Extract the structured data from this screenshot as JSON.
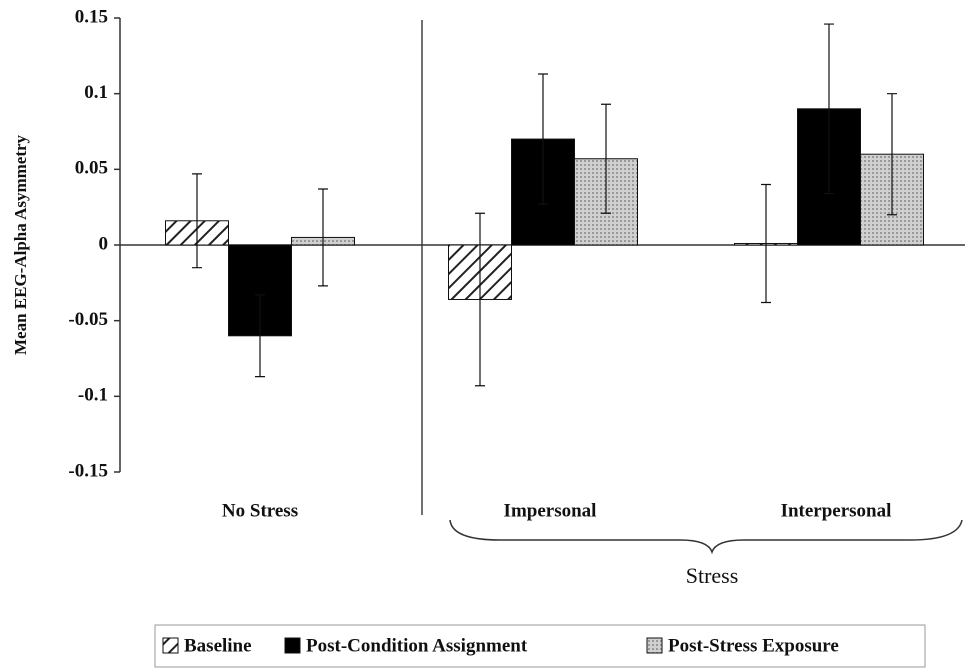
{
  "chart_data": {
    "type": "bar",
    "ylabel": "Mean EEG-Alpha Asymmetry",
    "categories": [
      "No Stress",
      "Impersonal",
      "Interpersonal"
    ],
    "annotation": "Stress",
    "series": [
      {
        "name": "Baseline",
        "color": "#222222",
        "pattern": "hatch",
        "values": [
          0.016,
          -0.036,
          0.001
        ],
        "errors": [
          0.031,
          0.057,
          0.039
        ]
      },
      {
        "name": "Post-Condition Assignment",
        "color": "#000000",
        "pattern": "solid",
        "values": [
          -0.06,
          0.07,
          0.09
        ],
        "errors": [
          0.027,
          0.043,
          0.056
        ]
      },
      {
        "name": "Post-Stress Exposure",
        "color": "#bbbbbb",
        "pattern": "dots",
        "values": [
          0.005,
          0.057,
          0.06
        ],
        "errors": [
          0.032,
          0.036,
          0.04
        ]
      }
    ],
    "ylim": [
      -0.15,
      0.15
    ],
    "yticks": [
      0.15,
      0.1,
      0.05,
      0,
      -0.05,
      -0.1,
      -0.15
    ],
    "grid": false
  }
}
